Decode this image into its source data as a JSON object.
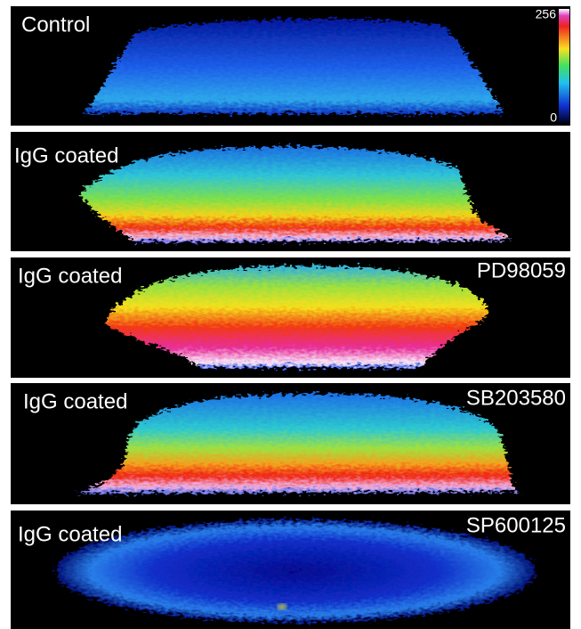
{
  "panels": [
    {
      "label": "Control"
    },
    {
      "label": "IgG coated"
    },
    {
      "label": "IgG coated",
      "treatment": "PD98059"
    },
    {
      "label": "IgG coated",
      "treatment": "SB203580"
    },
    {
      "label": "IgG coated",
      "treatment": "SP600125"
    }
  ],
  "colorbar": {
    "max": 256,
    "min": 0
  }
}
